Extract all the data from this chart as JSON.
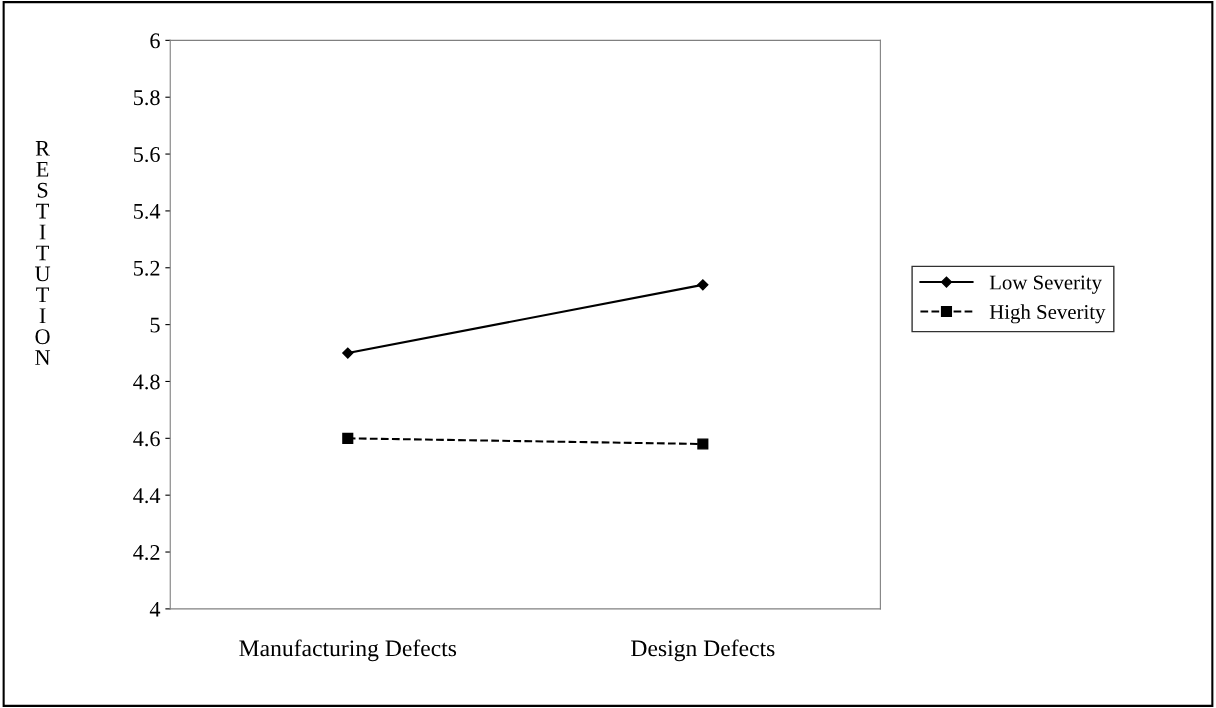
{
  "chart_data": {
    "type": "line",
    "ylabel": "RESTITUTION",
    "categories": [
      "Manufacturing Defects",
      "Design Defects"
    ],
    "series": [
      {
        "name": "Low Severity",
        "color": "#000000",
        "values": [
          4.9,
          5.14
        ],
        "marker": "diamond",
        "line_style": "solid"
      },
      {
        "name": "High Severity",
        "color": "#000000",
        "values": [
          4.6,
          4.58
        ],
        "marker": "square",
        "line_style": "dashed"
      }
    ],
    "ylim": [
      4,
      6
    ],
    "yticks": [
      4,
      4.2,
      4.4,
      4.6,
      4.8,
      5,
      5.2,
      5.4,
      5.6,
      5.8,
      6
    ],
    "grid": false,
    "legend": "right"
  }
}
